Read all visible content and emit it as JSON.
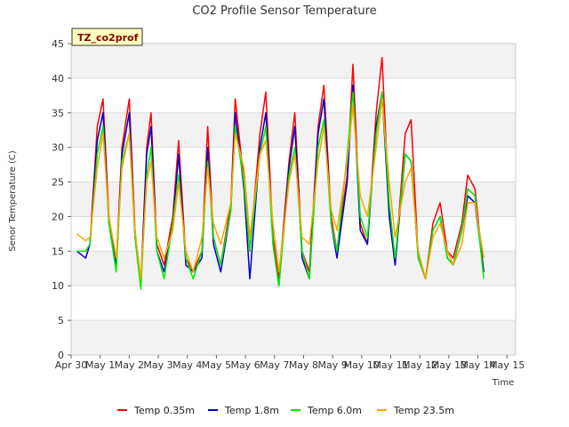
{
  "chart_data": {
    "type": "line",
    "title": "CO2 Profile Sensor Temperature",
    "xlabel": "Time",
    "ylabel": "Senor Temperature (C)",
    "site_tag": "TZ_co2prof",
    "ylim": [
      0,
      45
    ],
    "xlim": [
      0,
      15.3
    ],
    "y_ticks": [
      0,
      5,
      10,
      15,
      20,
      25,
      30,
      35,
      40,
      45
    ],
    "x_ticks": [
      0,
      1,
      2,
      3,
      4,
      5,
      6,
      7,
      8,
      9,
      10,
      11,
      12,
      13,
      14,
      15
    ],
    "x_tick_labels": [
      "Apr 30",
      "May 1",
      "May 2",
      "May 3",
      "May 4",
      "May 5",
      "May 6",
      "May 7",
      "May 8",
      "May 9",
      "May 10",
      "May 11",
      "May 12",
      "May 13",
      "May 14",
      "May 15"
    ],
    "grid": "horizontal alternating bands",
    "legend_position": "bottom-center",
    "series": [
      {
        "name": "Temp 0.35m",
        "color": "#ff0000",
        "x": [
          0.2,
          0.5,
          0.65,
          0.9,
          1.1,
          1.3,
          1.55,
          1.75,
          2.0,
          2.2,
          2.4,
          2.6,
          2.75,
          2.95,
          3.2,
          3.5,
          3.7,
          3.95,
          4.2,
          4.5,
          4.7,
          4.9,
          5.15,
          5.5,
          5.65,
          5.95,
          6.15,
          6.5,
          6.7,
          6.95,
          7.15,
          7.5,
          7.7,
          7.95,
          8.2,
          8.5,
          8.7,
          8.95,
          9.15,
          9.5,
          9.7,
          9.95,
          10.2,
          10.5,
          10.7,
          10.95,
          11.15,
          11.5,
          11.7,
          11.95,
          12.2,
          12.45,
          12.7,
          12.95,
          13.15,
          13.45,
          13.65,
          13.9,
          14.2
        ],
        "y": [
          15,
          15,
          16,
          33,
          37,
          20,
          13,
          30,
          37,
          18,
          10,
          30,
          35,
          16,
          13,
          20,
          31,
          14,
          12,
          15,
          33,
          17,
          13,
          22,
          37,
          25,
          15,
          32,
          38,
          17,
          11,
          28,
          35,
          15,
          12,
          33,
          39,
          20,
          15,
          26,
          42,
          19,
          16,
          35,
          43,
          21,
          13,
          32,
          34,
          14,
          11,
          19,
          22,
          15,
          14,
          19,
          26,
          24,
          12
        ]
      },
      {
        "name": "Temp 1.8m",
        "color": "#0000cc",
        "x": [
          0.2,
          0.5,
          0.65,
          0.9,
          1.1,
          1.3,
          1.55,
          1.75,
          2.0,
          2.2,
          2.4,
          2.6,
          2.75,
          2.95,
          3.2,
          3.5,
          3.7,
          3.95,
          4.2,
          4.5,
          4.7,
          4.9,
          5.15,
          5.5,
          5.65,
          5.95,
          6.15,
          6.5,
          6.7,
          6.95,
          7.15,
          7.5,
          7.7,
          7.95,
          8.2,
          8.5,
          8.7,
          8.95,
          9.15,
          9.5,
          9.7,
          9.95,
          10.2,
          10.5,
          10.7,
          10.95,
          11.15,
          11.5,
          11.7,
          11.95,
          12.2,
          12.45,
          12.7,
          12.95,
          13.15,
          13.45,
          13.65,
          13.9,
          14.2
        ],
        "y": [
          15,
          14,
          16,
          31,
          35,
          19,
          13,
          29,
          35,
          17,
          10,
          29,
          33,
          15,
          12,
          19,
          29,
          13,
          12,
          14,
          30,
          16,
          12,
          21,
          35,
          24,
          11,
          30,
          35,
          16,
          10,
          27,
          33,
          14,
          11,
          32,
          37,
          19,
          14,
          25,
          39,
          18,
          16,
          33,
          38,
          20,
          13,
          29,
          28,
          14,
          11,
          18,
          20,
          14,
          13,
          18,
          23,
          22,
          12
        ]
      },
      {
        "name": "Temp 6.0m",
        "color": "#00ee00",
        "x": [
          0.2,
          0.5,
          0.65,
          0.9,
          1.1,
          1.3,
          1.55,
          1.75,
          2.0,
          2.2,
          2.4,
          2.6,
          2.75,
          2.95,
          3.2,
          3.5,
          3.7,
          3.95,
          4.2,
          4.5,
          4.7,
          4.9,
          5.15,
          5.5,
          5.65,
          5.95,
          6.15,
          6.5,
          6.7,
          6.95,
          7.15,
          7.5,
          7.7,
          7.95,
          8.2,
          8.5,
          8.7,
          8.95,
          9.15,
          9.5,
          9.7,
          9.95,
          10.2,
          10.5,
          10.7,
          10.95,
          11.15,
          11.5,
          11.7,
          11.95,
          12.2,
          12.45,
          12.7,
          12.95,
          13.15,
          13.45,
          13.65,
          13.9,
          14.2
        ],
        "y": [
          15,
          15,
          16,
          29,
          33,
          19,
          12,
          28,
          32,
          17,
          9.5,
          26,
          30,
          15,
          11,
          19,
          26,
          14,
          11,
          15,
          28,
          17,
          13,
          21,
          33,
          25,
          15,
          29,
          33,
          16,
          10,
          26,
          30,
          15,
          11,
          30,
          34,
          19,
          15,
          29,
          38,
          20,
          17,
          32,
          38,
          22,
          14,
          29,
          28,
          14,
          11,
          18,
          20,
          14,
          13,
          18,
          24,
          23,
          11
        ]
      },
      {
        "name": "Temp 23.5m",
        "color": "#ffa500",
        "x": [
          0.2,
          0.5,
          0.65,
          0.9,
          1.1,
          1.3,
          1.55,
          1.75,
          2.0,
          2.2,
          2.4,
          2.6,
          2.75,
          2.95,
          3.2,
          3.5,
          3.7,
          3.95,
          4.2,
          4.5,
          4.7,
          4.9,
          5.15,
          5.5,
          5.65,
          5.95,
          6.15,
          6.5,
          6.7,
          6.95,
          7.15,
          7.5,
          7.7,
          7.95,
          8.2,
          8.5,
          8.7,
          8.95,
          9.15,
          9.5,
          9.7,
          9.95,
          10.2,
          10.5,
          10.7,
          10.95,
          11.15,
          11.5,
          11.7,
          11.95,
          12.2,
          12.45,
          12.7,
          12.95,
          13.15,
          13.45,
          13.65,
          13.9,
          14.2
        ],
        "y": [
          17.5,
          16.5,
          17,
          27,
          32,
          20,
          14,
          27,
          32,
          18,
          11,
          25,
          28,
          17,
          14,
          18,
          25,
          15,
          12,
          17,
          27,
          19,
          16,
          22,
          32,
          27,
          17,
          29,
          31,
          19,
          12,
          25,
          29,
          17,
          16,
          28,
          33,
          21,
          18,
          28,
          36,
          23,
          20,
          30,
          37,
          25,
          17,
          25,
          27,
          15,
          11,
          17,
          19,
          15,
          13,
          16,
          22,
          22,
          14
        ]
      }
    ]
  }
}
